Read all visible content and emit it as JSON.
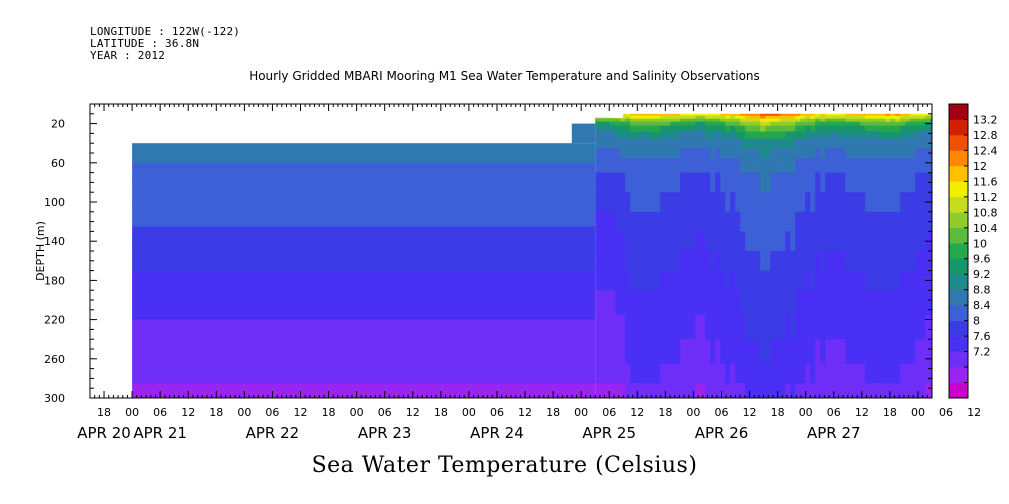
{
  "header": {
    "longitude": "LONGITUDE : 122W(-122)",
    "latitude": "LATITUDE : 36.8N",
    "year": "YEAR : 2012"
  },
  "title": "Hourly Gridded MBARI Mooring M1 Sea Water Temperature and Salinity Observations",
  "bottom_title": "Sea Water Temperature (Celsius)",
  "chart_data": {
    "type": "heatmap",
    "title": "Hourly Gridded MBARI Mooring M1 Sea Water Temperature and Salinity Observations",
    "ylabel": "DEPTH (m)",
    "y_ticks": [
      20,
      60,
      100,
      140,
      180,
      220,
      260,
      300
    ],
    "ylim": [
      0,
      300
    ],
    "y_inverted": true,
    "x_hour_ticks": [
      "18",
      "00",
      "06",
      "12",
      "18",
      "00",
      "06",
      "12",
      "18",
      "00",
      "06",
      "12",
      "18",
      "00",
      "06",
      "12",
      "18",
      "00",
      "06",
      "12",
      "18",
      "00",
      "06",
      "12",
      "18",
      "00",
      "06",
      "12",
      "18",
      "00",
      "06",
      "12"
    ],
    "x_date_labels": [
      "APR 20",
      "APR 21",
      "APR 22",
      "APR 23",
      "APR 24",
      "APR 25",
      "APR 26",
      "APR 27"
    ],
    "xlim_hours": [
      -9,
      171
    ],
    "data_start_hours": 0,
    "colorbar": {
      "levels": [
        7.2,
        7.6,
        8,
        8.4,
        8.8,
        9.2,
        9.6,
        10,
        10.4,
        10.8,
        11.2,
        11.6,
        12,
        12.4,
        12.8,
        13.2
      ],
      "colors": [
        "#cc00cc",
        "#9a24f2",
        "#6e2ef7",
        "#4a30f5",
        "#3b3ce6",
        "#3d60d6",
        "#2f78b0",
        "#1f8a8c",
        "#17966a",
        "#24a84b",
        "#5cba3c",
        "#8fcc2e",
        "#c8dc1e",
        "#f2ee00",
        "#ffc000",
        "#ff8800",
        "#f05000",
        "#d22000",
        "#a00010"
      ],
      "labels": [
        "13.2",
        "12.8",
        "12.4",
        "12",
        "11.6",
        "11.2",
        "10.8",
        "10.4",
        "10",
        "9.6",
        "9.2",
        "8.8",
        "8.4",
        "8",
        "7.6",
        "7.2"
      ]
    },
    "profile_before_apr25": {
      "depth_bands": [
        [
          40,
          60
        ],
        [
          60,
          80
        ],
        [
          80,
          100
        ],
        [
          100,
          125
        ],
        [
          125,
          145
        ],
        [
          145,
          170
        ],
        [
          170,
          195
        ],
        [
          195,
          220
        ],
        [
          220,
          245
        ],
        [
          245,
          265
        ],
        [
          265,
          285
        ],
        [
          285,
          300
        ]
      ],
      "temperatures": [
        9.3,
        9.0,
        8.9,
        8.8,
        8.6,
        8.4,
        8.2,
        8.0,
        7.9,
        7.8,
        7.6,
        7.3
      ]
    },
    "profile_after_apr25": {
      "depth_bands": [
        [
          10,
          12
        ],
        [
          12,
          15
        ],
        [
          15,
          18
        ],
        [
          18,
          22
        ],
        [
          22,
          28
        ],
        [
          28,
          35
        ],
        [
          35,
          45
        ],
        [
          45,
          55
        ],
        [
          55,
          70
        ],
        [
          70,
          90
        ],
        [
          90,
          110
        ],
        [
          110,
          130
        ],
        [
          130,
          150
        ],
        [
          150,
          170
        ],
        [
          170,
          190
        ],
        [
          190,
          215
        ],
        [
          215,
          240
        ],
        [
          240,
          265
        ],
        [
          265,
          285
        ],
        [
          285,
          300
        ]
      ],
      "temperatures": [
        12.6,
        12.0,
        11.4,
        10.9,
        10.4,
        9.9,
        9.5,
        9.3,
        9.1,
        8.9,
        8.8,
        8.7,
        8.6,
        8.5,
        8.4,
        8.3,
        8.2,
        8.1,
        8.0,
        7.8
      ]
    }
  }
}
